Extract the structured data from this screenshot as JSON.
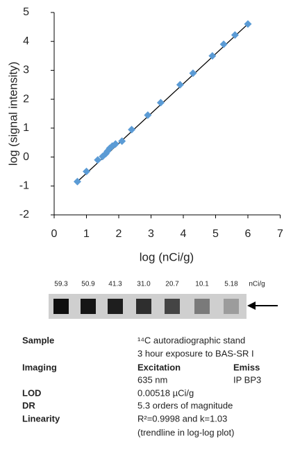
{
  "chart_data": {
    "type": "scatter",
    "xlabel": "log (nCi/g)",
    "ylabel": "log (signal intensity)",
    "x": [
      0.72,
      1.0,
      1.35,
      1.5,
      1.6,
      1.65,
      1.72,
      1.8,
      1.9,
      2.1,
      2.4,
      2.9,
      3.3,
      3.9,
      4.3,
      4.9,
      5.25,
      5.6,
      6.0
    ],
    "values": [
      -0.85,
      -0.5,
      -0.1,
      0.02,
      0.12,
      0.2,
      0.3,
      0.38,
      0.45,
      0.55,
      0.95,
      1.45,
      1.88,
      2.5,
      2.9,
      3.5,
      3.9,
      4.22,
      4.6
    ],
    "color": "#5b9bd5",
    "trendline": {
      "x": [
        0.72,
        6.0
      ],
      "y": [
        -0.85,
        4.6
      ],
      "color": "#000000"
    },
    "xlim": [
      0,
      7
    ],
    "xticks": [
      0,
      1,
      2,
      3,
      4,
      5,
      6,
      7
    ],
    "ylim": [
      -2,
      5
    ],
    "yticks": [
      -2,
      -1,
      0,
      1,
      2,
      3,
      4,
      5
    ],
    "grid": false
  },
  "strip": {
    "labels": [
      "59.3",
      "50.9",
      "41.3",
      "31.0",
      "20.7",
      "10.1",
      "5.18"
    ],
    "unit": "nCi/g"
  },
  "specs": {
    "sample": {
      "label": "Sample",
      "lines": [
        "¹⁴C  autoradiographic stand",
        "3 hour exposure to BAS-SR I"
      ]
    },
    "imaging": {
      "label": "Imaging",
      "excitation": {
        "head": "Excitation",
        "value": "635 nm"
      },
      "emission": {
        "head": "Emiss",
        "value": "IP BP3"
      }
    },
    "lod": {
      "label": "LOD",
      "value": "0.00518 µCi/g"
    },
    "dr": {
      "label": "DR",
      "value": "5.3 orders of magnitude"
    },
    "linearity": {
      "label": "Linearity",
      "lines": [
        "R²=0.9998 and k=1.03",
        "(trendline in log-log plot)"
      ]
    }
  }
}
